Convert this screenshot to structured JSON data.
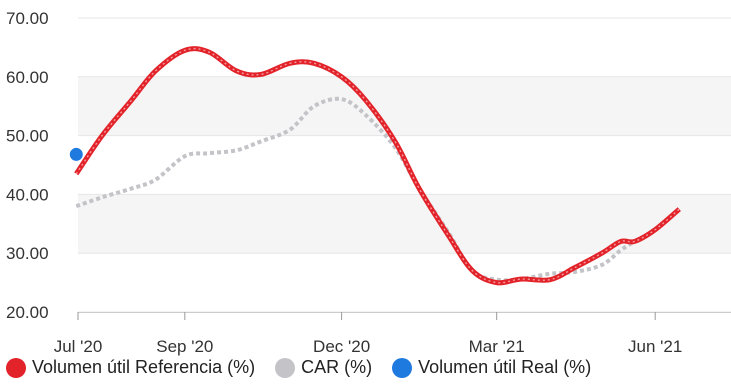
{
  "chart_data": {
    "type": "line",
    "title": "",
    "xlabel": "",
    "ylabel": "",
    "ylim": [
      20,
      70
    ],
    "yticks": [
      "20.00",
      "30.00",
      "40.00",
      "50.00",
      "60.00",
      "70.00"
    ],
    "ytick_values": [
      20,
      30,
      40,
      50,
      60,
      70
    ],
    "x_range": [
      "2020-07-01",
      "2021-07-15"
    ],
    "xticks": [
      {
        "label": "Jul '20",
        "date": "2020-07-01"
      },
      {
        "label": "Sep '20",
        "date": "2020-09-01"
      },
      {
        "label": "Dec '20",
        "date": "2020-12-01"
      },
      {
        "label": "Mar '21",
        "date": "2021-03-01"
      },
      {
        "label": "Jun '21",
        "date": "2021-06-01"
      }
    ],
    "grid": true,
    "legend_position": "bottom",
    "series": [
      {
        "name": "Volumen útil Referencia (%)",
        "color": "#e3232a",
        "style": "solid",
        "points": [
          [
            "2020-06-30",
            43.5
          ],
          [
            "2020-07-15",
            50.0
          ],
          [
            "2020-08-01",
            56.0
          ],
          [
            "2020-08-15",
            61.0
          ],
          [
            "2020-09-01",
            64.5
          ],
          [
            "2020-09-15",
            64.2
          ],
          [
            "2020-10-01",
            61.0
          ],
          [
            "2020-10-15",
            60.4
          ],
          [
            "2020-11-01",
            62.3
          ],
          [
            "2020-11-15",
            62.3
          ],
          [
            "2020-12-01",
            60.0
          ],
          [
            "2020-12-15",
            56.0
          ],
          [
            "2021-01-01",
            49.0
          ],
          [
            "2021-01-15",
            41.0
          ],
          [
            "2021-02-01",
            33.0
          ],
          [
            "2021-02-15",
            27.0
          ],
          [
            "2021-03-01",
            25.0
          ],
          [
            "2021-03-15",
            25.6
          ],
          [
            "2021-04-01",
            25.5
          ],
          [
            "2021-04-15",
            27.5
          ],
          [
            "2021-05-01",
            30.0
          ],
          [
            "2021-05-12",
            32.0
          ],
          [
            "2021-05-20",
            32.0
          ],
          [
            "2021-06-01",
            34.0
          ],
          [
            "2021-06-15",
            37.5
          ]
        ]
      },
      {
        "name": "CAR (%)",
        "color": "#c3c3c8",
        "style": "dotted",
        "points": [
          [
            "2020-06-30",
            38.0
          ],
          [
            "2020-07-15",
            39.5
          ],
          [
            "2020-08-01",
            41.0
          ],
          [
            "2020-08-15",
            42.5
          ],
          [
            "2020-09-01",
            46.5
          ],
          [
            "2020-09-15",
            47.0
          ],
          [
            "2020-10-01",
            47.5
          ],
          [
            "2020-10-15",
            49.0
          ],
          [
            "2020-11-01",
            51.0
          ],
          [
            "2020-11-15",
            55.0
          ],
          [
            "2020-12-01",
            56.2
          ],
          [
            "2020-12-15",
            53.5
          ],
          [
            "2021-01-01",
            48.0
          ],
          [
            "2021-01-15",
            41.0
          ],
          [
            "2021-02-01",
            33.5
          ],
          [
            "2021-02-15",
            27.0
          ],
          [
            "2021-03-01",
            25.5
          ],
          [
            "2021-03-15",
            25.6
          ],
          [
            "2021-04-01",
            26.5
          ],
          [
            "2021-04-15",
            26.8
          ],
          [
            "2021-05-01",
            28.0
          ],
          [
            "2021-05-12",
            30.5
          ],
          [
            "2021-05-20",
            32.0
          ],
          [
            "2021-06-01",
            34.0
          ],
          [
            "2021-06-15",
            37.5
          ]
        ]
      },
      {
        "name": "Volumen útil Real (%)",
        "color": "#1f7ae0",
        "style": "point",
        "points": [
          [
            "2020-06-30",
            46.8
          ]
        ]
      }
    ]
  }
}
